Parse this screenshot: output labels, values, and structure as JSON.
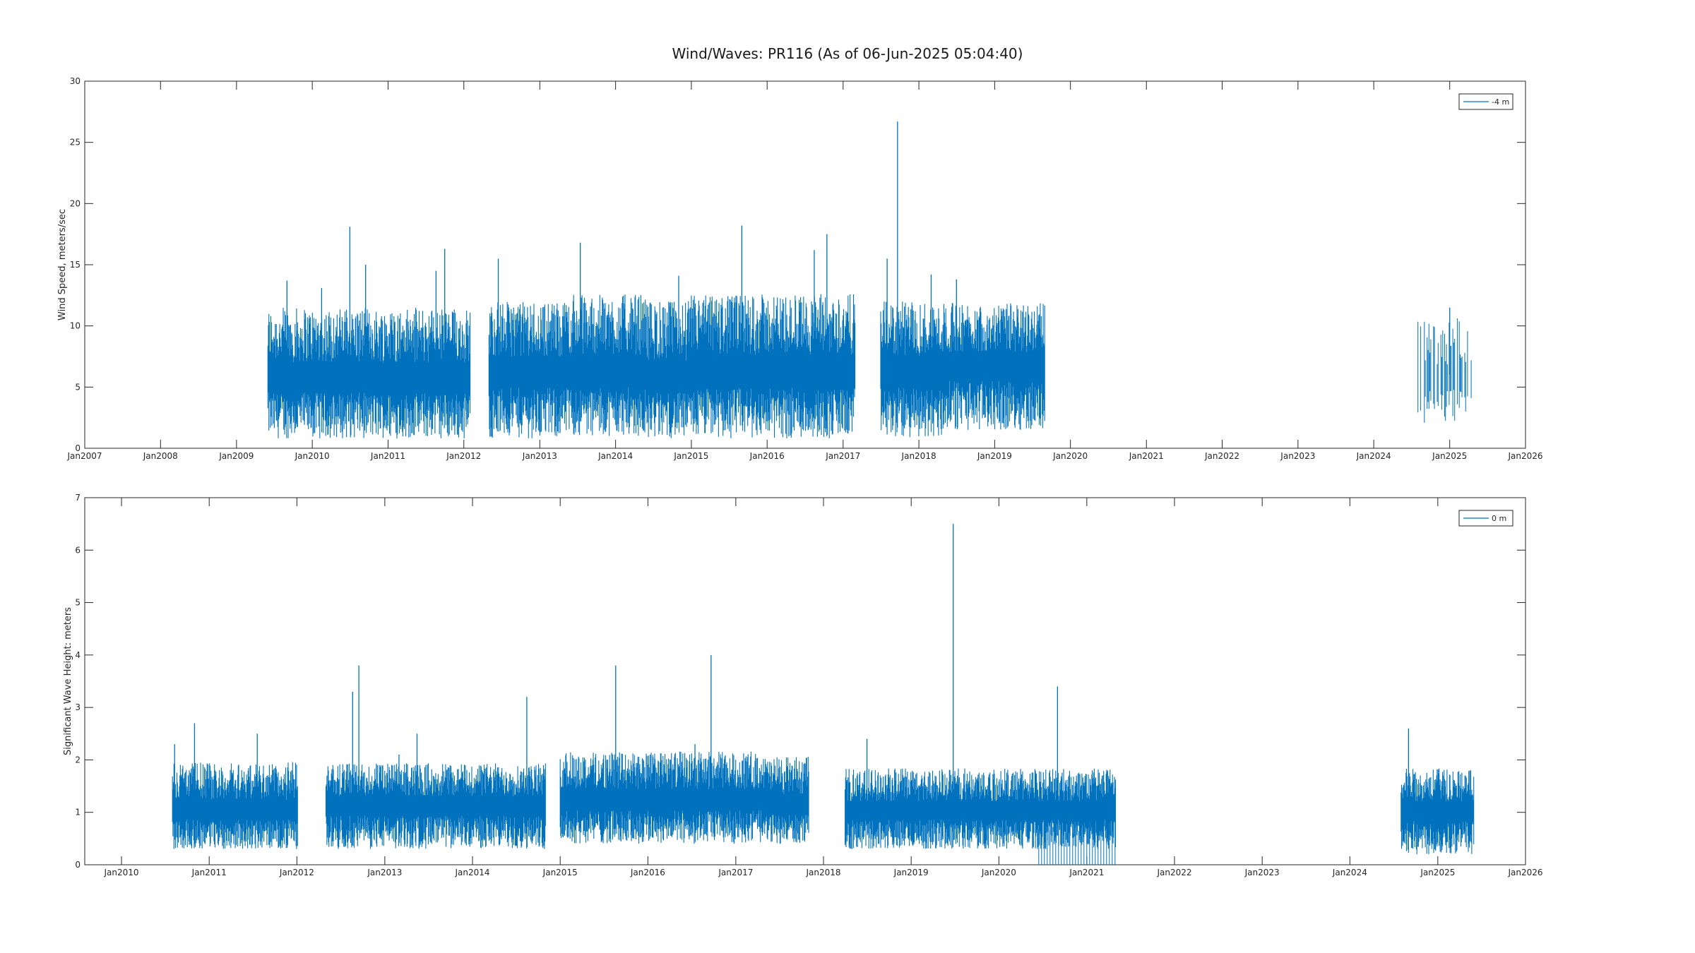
{
  "figure": {
    "title": "Wind/Waves: PR116 (As of 06-Jun-2025 05:04:40)"
  },
  "chart_data": [
    {
      "type": "line",
      "ylabel": "Wind Speed, meters/sec",
      "xlabel": "",
      "xlim": [
        "2007-01-01",
        "2026-01-01"
      ],
      "ylim": [
        0,
        30
      ],
      "x_ticks": [
        "Jan2007",
        "Jan2008",
        "Jan2009",
        "Jan2010",
        "Jan2011",
        "Jan2012",
        "Jan2013",
        "Jan2014",
        "Jan2015",
        "Jan2016",
        "Jan2017",
        "Jan2018",
        "Jan2019",
        "Jan2020",
        "Jan2021",
        "Jan2022",
        "Jan2023",
        "Jan2024",
        "Jan2025",
        "Jan2026"
      ],
      "y_ticks": [
        0,
        5,
        10,
        15,
        20,
        25,
        30
      ],
      "legend": {
        "position": "top-right",
        "entries": [
          "-4 m"
        ]
      },
      "grid": false,
      "color": "#0072bd",
      "series": [
        {
          "name": "-4 m",
          "segments": [
            {
              "start": "2009-06-01",
              "end": "2012-02-01",
              "low": 0.8,
              "mid": 5.5,
              "high": 10.5
            },
            {
              "start": "2012-05-01",
              "end": "2013-05-01",
              "low": 0.8,
              "mid": 6.0,
              "high": 11.0
            },
            {
              "start": "2013-05-01",
              "end": "2014-06-01",
              "low": 1.0,
              "mid": 6.0,
              "high": 11.5
            },
            {
              "start": "2014-06-01",
              "end": "2015-01-01",
              "low": 0.8,
              "mid": 5.5,
              "high": 11.0
            },
            {
              "start": "2015-01-01",
              "end": "2017-03-01",
              "low": 0.8,
              "mid": 6.0,
              "high": 11.5
            },
            {
              "start": "2017-07-01",
              "end": "2018-05-01",
              "low": 0.8,
              "mid": 6.0,
              "high": 11.0
            },
            {
              "start": "2018-05-01",
              "end": "2019-09-01",
              "low": 1.5,
              "mid": 6.5,
              "high": 11.0
            },
            {
              "start": "2024-08-01",
              "end": "2025-05-01",
              "low": 2.0,
              "mid": 5.5,
              "high": 10.0,
              "sparse": true
            }
          ],
          "peaks": [
            {
              "x": "2009-09-01",
              "y": 13.7
            },
            {
              "x": "2010-02-15",
              "y": 13.1
            },
            {
              "x": "2010-07-01",
              "y": 18.1
            },
            {
              "x": "2010-09-15",
              "y": 15.0
            },
            {
              "x": "2011-08-20",
              "y": 14.5
            },
            {
              "x": "2011-10-01",
              "y": 16.3
            },
            {
              "x": "2012-06-15",
              "y": 15.5
            },
            {
              "x": "2013-07-15",
              "y": 16.8
            },
            {
              "x": "2014-11-01",
              "y": 14.1
            },
            {
              "x": "2015-09-01",
              "y": 18.2
            },
            {
              "x": "2016-08-15",
              "y": 16.2
            },
            {
              "x": "2016-10-15",
              "y": 17.5
            },
            {
              "x": "2017-08-01",
              "y": 15.5
            },
            {
              "x": "2017-09-20",
              "y": 26.7
            },
            {
              "x": "2018-03-01",
              "y": 14.2
            },
            {
              "x": "2018-07-01",
              "y": 13.8
            },
            {
              "x": "2025-01-01",
              "y": 11.5
            }
          ]
        }
      ]
    },
    {
      "type": "line",
      "ylabel": "Significant Wave Height:  meters",
      "xlabel": "",
      "xlim": [
        "2009-08-01",
        "2026-01-01"
      ],
      "ylim": [
        0,
        7
      ],
      "x_ticks": [
        "Jan2010",
        "Jan2011",
        "Jan2012",
        "Jan2013",
        "Jan2014",
        "Jan2015",
        "Jan2016",
        "Jan2017",
        "Jan2018",
        "Jan2019",
        "Jan2020",
        "Jan2021",
        "Jan2022",
        "Jan2023",
        "Jan2024",
        "Jan2025",
        "Jan2026"
      ],
      "y_ticks": [
        0,
        1,
        2,
        3,
        4,
        5,
        6,
        7
      ],
      "legend": {
        "position": "top-right",
        "entries": [
          "0 m"
        ]
      },
      "grid": false,
      "color": "#0072bd",
      "series": [
        {
          "name": "0 m",
          "segments": [
            {
              "start": "2010-08-01",
              "end": "2012-01-05",
              "low": 0.3,
              "mid": 1.0,
              "high": 1.8
            },
            {
              "start": "2012-05-01",
              "end": "2014-11-01",
              "low": 0.3,
              "mid": 1.1,
              "high": 1.8
            },
            {
              "start": "2015-01-01",
              "end": "2017-05-01",
              "low": 0.4,
              "mid": 1.2,
              "high": 2.0
            },
            {
              "start": "2017-05-01",
              "end": "2017-11-01",
              "low": 0.4,
              "mid": 1.1,
              "high": 1.9
            },
            {
              "start": "2018-04-01",
              "end": "2021-05-01",
              "low": 0.3,
              "mid": 1.0,
              "high": 1.7
            },
            {
              "start": "2024-08-01",
              "end": "2025-06-01",
              "low": 0.2,
              "mid": 1.0,
              "high": 1.7
            }
          ],
          "peaks": [
            {
              "x": "2010-08-10",
              "y": 2.3
            },
            {
              "x": "2010-11-01",
              "y": 2.7
            },
            {
              "x": "2011-07-20",
              "y": 2.5
            },
            {
              "x": "2012-08-20",
              "y": 3.3
            },
            {
              "x": "2012-09-15",
              "y": 3.8
            },
            {
              "x": "2013-03-01",
              "y": 2.1
            },
            {
              "x": "2013-05-15",
              "y": 2.5
            },
            {
              "x": "2014-08-15",
              "y": 3.2
            },
            {
              "x": "2015-08-20",
              "y": 3.8
            },
            {
              "x": "2016-09-20",
              "y": 4.0
            },
            {
              "x": "2016-07-15",
              "y": 2.3
            },
            {
              "x": "2018-07-01",
              "y": 2.4
            },
            {
              "x": "2019-06-25",
              "y": 6.5
            },
            {
              "x": "2020-09-01",
              "y": 3.4
            },
            {
              "x": "2024-09-01",
              "y": 2.6
            }
          ],
          "dropouts": {
            "start": "2020-06-15",
            "end": "2021-05-01",
            "y": 0.0
          }
        }
      ]
    }
  ]
}
